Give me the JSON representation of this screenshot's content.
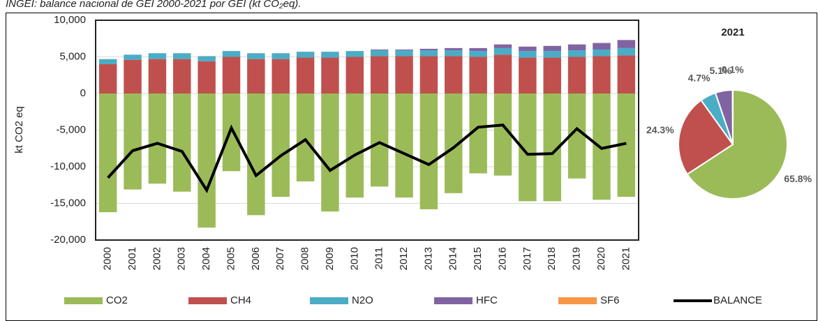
{
  "chart_data": [
    {
      "type": "bar",
      "title": "INGEI: balance nacional de GEI 2000-2021 por GEI (kt CO₂eq).",
      "ylabel": "kt CO2 eq",
      "categories": [
        "2000",
        "2001",
        "2002",
        "2003",
        "2004",
        "2005",
        "2006",
        "2007",
        "2008",
        "2009",
        "2010",
        "2011",
        "2012",
        "2013",
        "2014",
        "2015",
        "2016",
        "2017",
        "2018",
        "2019",
        "2020",
        "2021"
      ],
      "ylim": [
        -20000,
        10000
      ],
      "yticks": [
        {
          "value": -20000,
          "label": "-20,000"
        },
        {
          "value": -15000,
          "label": "-15,000"
        },
        {
          "value": -10000,
          "label": "-10,000"
        },
        {
          "value": -5000,
          "label": "-5,000"
        },
        0,
        {
          "value": 5000,
          "label": "5,000"
        },
        {
          "value": 10000,
          "label": "10,000"
        }
      ],
      "grid": true,
      "stacked": true,
      "series": [
        {
          "name": "CO2",
          "color": "#9bbb59",
          "values": [
            -16200,
            -13100,
            -12300,
            -13400,
            -18300,
            -10600,
            -16600,
            -14100,
            -12000,
            -16100,
            -14200,
            -12700,
            -14200,
            -15800,
            -13600,
            -10900,
            -11200,
            -14700,
            -14700,
            -11600,
            -14500,
            -14100
          ]
        },
        {
          "name": "CH4",
          "color": "#c0504d",
          "values": [
            4000,
            4600,
            4700,
            4700,
            4400,
            5000,
            4700,
            4700,
            4900,
            4900,
            5000,
            5100,
            5100,
            5100,
            5100,
            5000,
            5300,
            4900,
            4900,
            5000,
            5100,
            5200
          ]
        },
        {
          "name": "N2O",
          "color": "#4bacc6",
          "values": [
            700,
            700,
            800,
            800,
            700,
            800,
            800,
            800,
            800,
            800,
            800,
            800,
            800,
            800,
            800,
            800,
            900,
            900,
            900,
            900,
            900,
            1000
          ]
        },
        {
          "name": "HFC",
          "color": "#8064a2",
          "values": [
            0,
            0,
            0,
            0,
            0,
            0,
            0,
            0,
            0,
            0,
            0,
            100,
            100,
            200,
            300,
            400,
            500,
            600,
            700,
            800,
            900,
            1100
          ]
        },
        {
          "name": "SF6",
          "color": "#f79646",
          "values": [
            5,
            5,
            5,
            5,
            5,
            5,
            5,
            5,
            5,
            5,
            5,
            5,
            5,
            5,
            5,
            5,
            5,
            5,
            5,
            5,
            5,
            5
          ]
        },
        {
          "name": "BALANCE",
          "color": "#000000",
          "type": "line",
          "values": [
            -11500,
            -7800,
            -6800,
            -7900,
            -13200,
            -4700,
            -11200,
            -8500,
            -6300,
            -10500,
            -8400,
            -6700,
            -8200,
            -9700,
            -7400,
            -4600,
            -4300,
            -8300,
            -8200,
            -4800,
            -7500,
            -6800
          ]
        }
      ]
    },
    {
      "type": "pie",
      "title": "2021",
      "values": [
        65.8,
        24.3,
        4.7,
        5.1,
        0.1
      ],
      "value_labels": [
        "65.8%",
        "24.3%",
        "4.7%",
        "5.1%",
        "0.1%"
      ],
      "colors": [
        "#9bbb59",
        "#c0504d",
        "#4bacc6",
        "#8064a2",
        "#f79646"
      ]
    }
  ]
}
